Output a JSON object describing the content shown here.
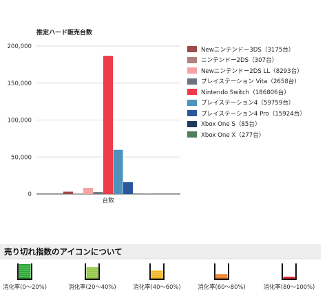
{
  "chart_data": {
    "type": "bar",
    "title": "推定ハード販売台数",
    "categories": [
      "台数"
    ],
    "xlabel": "",
    "ylabel": "",
    "ylim": [
      0,
      200000
    ],
    "yticks": [
      "0",
      "50,000",
      "100,000",
      "150,000",
      "200,000"
    ],
    "ytick_values": [
      0,
      50000,
      100000,
      150000,
      200000
    ],
    "grid": true,
    "legend_position": "right",
    "series": [
      {
        "name": "Newニンテンドー3DS（3175台）",
        "values": [
          3175
        ],
        "color": "#9c4b4b"
      },
      {
        "name": "ニンテンドー2DS（307台）",
        "values": [
          307
        ],
        "color": "#b07f7f"
      },
      {
        "name": "Newニンテンドー2DS LL（8293台）",
        "values": [
          8293
        ],
        "color": "#f5a3a3"
      },
      {
        "name": "プレイステーション Vita（2658台）",
        "values": [
          2658
        ],
        "color": "#6c757d"
      },
      {
        "name": "Nintendo Switch（186806台）",
        "values": [
          186806
        ],
        "color": "#ee3b48"
      },
      {
        "name": "プレイステーション4（59759台）",
        "values": [
          59759
        ],
        "color": "#4d93bd"
      },
      {
        "name": "プレイステーション4 Pro（15924台）",
        "values": [
          15924
        ],
        "color": "#2b579a"
      },
      {
        "name": "Xbox One S（85台）",
        "values": [
          85
        ],
        "color": "#1f3a5f"
      },
      {
        "name": "Xbox One X（277台）",
        "values": [
          277
        ],
        "color": "#4f7f5a"
      }
    ]
  },
  "section": {
    "title": "売り切れ指数のアイコンについて"
  },
  "icons": [
    {
      "icon": "cup-icon-green",
      "label": "消化率(0〜20%)",
      "color": "#22a52b",
      "fill_percent": 100
    },
    {
      "icon": "cup-icon-lime",
      "label": "消化率(20〜40%)",
      "color": "#8ec63f",
      "fill_percent": 80
    },
    {
      "icon": "cup-icon-yellow",
      "label": "消化率(40〜60%)",
      "color": "#f3b21a",
      "fill_percent": 55
    },
    {
      "icon": "cup-icon-orange",
      "label": "消化率(60〜80%)",
      "color": "#f07c22",
      "fill_percent": 30
    },
    {
      "icon": "cup-icon-red",
      "label": "消化率(80〜100%)",
      "color": "#e8262b",
      "fill_percent": 12
    }
  ]
}
